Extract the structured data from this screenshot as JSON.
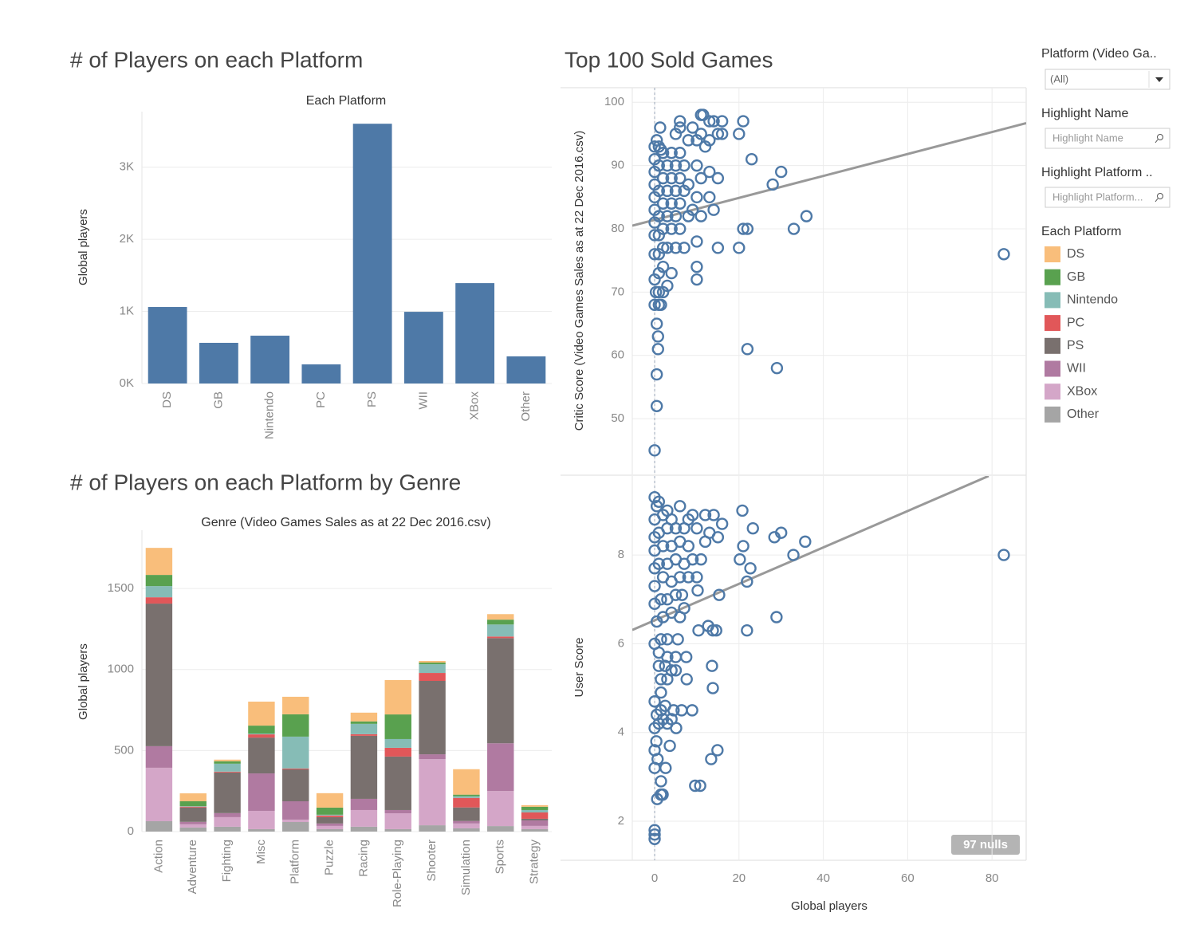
{
  "chart_data": [
    {
      "type": "bar",
      "title": "# of Players on each Platform",
      "header": "Each Platform",
      "y_label": "Global players",
      "categories": [
        "DS",
        "GB",
        "Nintendo",
        "PC",
        "PS",
        "WII",
        "XBox",
        "Other"
      ],
      "values": [
        1061,
        564,
        663,
        265,
        3602,
        994,
        1392,
        376
      ],
      "color": "#4e79a7",
      "ylim": [
        0,
        3770
      ],
      "yticks": [
        {
          "value": 0,
          "label": "0K"
        },
        {
          "value": 1000,
          "label": "1K"
        },
        {
          "value": 2000,
          "label": "2K"
        },
        {
          "value": 3000,
          "label": "3K"
        }
      ],
      "grid": true
    },
    {
      "type": "stacked_bar",
      "title": "# of Players on each Platform by Genre",
      "header": "Genre (Video Games Sales as at 22 Dec 2016.csv)",
      "y_label": "Global players",
      "legend_title": "Each Platform",
      "categories": [
        "Action",
        "Adventure",
        "Fighting",
        "Misc",
        "Platform",
        "Puzzle",
        "Racing",
        "Role-Playing",
        "Shooter",
        "Simulation",
        "Sports",
        "Strategy"
      ],
      "series": [
        {
          "name": "DS",
          "color": "#f9be7b",
          "values": [
            167,
            49,
            10,
            148,
            108,
            89,
            54,
            212,
            10,
            157,
            34,
            10
          ]
        },
        {
          "name": "GB",
          "color": "#59a14f",
          "values": [
            69,
            30,
            15,
            49,
            138,
            44,
            15,
            152,
            10,
            10,
            30,
            20
          ]
        },
        {
          "name": "Nintendo",
          "color": "#86bcb6",
          "values": [
            69,
            3,
            49,
            5,
            197,
            5,
            64,
            54,
            54,
            10,
            74,
            15
          ]
        },
        {
          "name": "PC",
          "color": "#e15759",
          "values": [
            39,
            5,
            5,
            20,
            5,
            10,
            10,
            54,
            49,
            59,
            10,
            39
          ]
        },
        {
          "name": "PS",
          "color": "#79706e",
          "values": [
            880,
            89,
            251,
            221,
            197,
            39,
            389,
            330,
            453,
            84,
            649,
            10
          ]
        },
        {
          "name": "WII",
          "color": "#b07aa1",
          "values": [
            133,
            15,
            25,
            231,
            113,
            15,
            69,
            20,
            30,
            15,
            295,
            34
          ]
        },
        {
          "name": "XBox",
          "color": "#d4a6c8",
          "values": [
            330,
            20,
            59,
            113,
            15,
            20,
            103,
            98,
            408,
            30,
            216,
            20
          ]
        },
        {
          "name": "Other",
          "color": "#a5a5a5",
          "values": [
            64,
            25,
            30,
            15,
            59,
            15,
            30,
            15,
            39,
            20,
            34,
            15
          ]
        }
      ],
      "ylim": [
        0,
        1860
      ],
      "yticks": [
        0,
        500,
        1000,
        1500
      ],
      "grid": true
    },
    {
      "type": "scatter",
      "title": "Top 100 Sold Games",
      "y_label": "Critic Score (Video Games Sales as at 22 Dec 2016.csv)",
      "color": "#4e79a7",
      "x": [
        0,
        0.5,
        0.5,
        0.8,
        0.8,
        0.5,
        0,
        1,
        1.5,
        0.3,
        1,
        2,
        3,
        0,
        1,
        2,
        4,
        0,
        1,
        2,
        3,
        5,
        7,
        0,
        1,
        2,
        4,
        6,
        0,
        1,
        3,
        5,
        8,
        0,
        2,
        4,
        6,
        9,
        14,
        0,
        1,
        3,
        5,
        7,
        10,
        13,
        0,
        2,
        4,
        6,
        8,
        11,
        15,
        0,
        1,
        3,
        5,
        7,
        10,
        13,
        0,
        2,
        4,
        6,
        0,
        1,
        1.5,
        8,
        10,
        12,
        13,
        15,
        16,
        20,
        0.5,
        1.3,
        5,
        6,
        9,
        11,
        11.5,
        13,
        14,
        16,
        21,
        6,
        11,
        10,
        10,
        10,
        11,
        15,
        20,
        21,
        22,
        23,
        28,
        30,
        33,
        36,
        22,
        29,
        82.8
      ],
      "values": [
        45,
        52,
        57,
        61,
        63,
        65,
        68,
        68,
        68,
        70,
        70,
        70,
        71,
        72,
        73,
        74,
        73,
        76,
        76,
        77,
        77,
        77,
        77,
        79,
        79,
        80,
        80,
        80,
        81,
        82,
        82,
        82,
        82,
        83,
        84,
        84,
        84,
        83,
        83,
        85,
        86,
        86,
        86,
        86,
        85,
        85,
        87,
        88,
        88,
        88,
        87,
        88,
        88,
        89,
        90,
        90,
        90,
        90,
        90,
        89,
        91,
        92,
        92,
        92,
        93,
        93,
        92.5,
        94,
        94,
        93,
        94,
        95,
        95,
        95,
        94,
        96,
        95,
        97,
        96,
        98,
        98,
        97,
        97,
        97,
        97,
        96,
        95,
        72,
        74,
        78,
        82,
        77,
        77,
        80,
        80,
        91,
        87,
        89,
        80,
        82,
        61,
        58,
        76
      ],
      "trendline": {
        "x": [
          -5.3,
          88.1
        ],
        "y": [
          80.5,
          96.7
        ],
        "color": "#999999"
      },
      "xlim": [
        -5.3,
        88.1
      ],
      "ylim": [
        41.2,
        102.3
      ],
      "yticks": [
        50,
        60,
        70,
        80,
        90,
        100
      ],
      "grid": true
    },
    {
      "type": "scatter",
      "y_label": "User Score",
      "x_label": "Global players",
      "annotation": "97 nulls",
      "color": "#4e79a7",
      "x": [
        0,
        0,
        0,
        0.6,
        1.5,
        1.9,
        1.5,
        2.6,
        0,
        0.7,
        0,
        0.4,
        3.6,
        5.1,
        0,
        1,
        2,
        3,
        4,
        0.5,
        1.5,
        2.5,
        4.5,
        6.4,
        8.9,
        0,
        1.5,
        7.6,
        1.5,
        3,
        5,
        1,
        2.5,
        4,
        13.6,
        13.8,
        1,
        3,
        5,
        7.5,
        0,
        1.5,
        3,
        5.5,
        0.5,
        2,
        4,
        6,
        7,
        10.4,
        12.7,
        13.8,
        14.6,
        0,
        1.5,
        3,
        5,
        6.5,
        10.2,
        15.3,
        0,
        2,
        4,
        6,
        8,
        10,
        0,
        1,
        3,
        5,
        7,
        9,
        11,
        0,
        2,
        4,
        6,
        8,
        12,
        15,
        0,
        1,
        3,
        5,
        7,
        10,
        13,
        0,
        2,
        4,
        8,
        12,
        0.5,
        3,
        6,
        9,
        14,
        16,
        0,
        1,
        20.8,
        23.3,
        21,
        20.2,
        22.7,
        21.9,
        28.4,
        30,
        32.9,
        35.7,
        14.9,
        13.4,
        9.6,
        10.8,
        28.9,
        21.9,
        82.8
      ],
      "values": [
        1.6,
        1.7,
        1.8,
        2.5,
        2.6,
        2.6,
        2.9,
        3.2,
        3.2,
        3.4,
        3.6,
        3.8,
        3.7,
        4.1,
        4.1,
        4.2,
        4.3,
        4.2,
        4.3,
        4.4,
        4.5,
        4.6,
        4.5,
        4.5,
        4.5,
        4.7,
        4.9,
        5.2,
        5.2,
        5.2,
        5.4,
        5.5,
        5.5,
        5.4,
        5.5,
        5.0,
        5.8,
        5.7,
        5.7,
        5.7,
        6.0,
        6.1,
        6.1,
        6.1,
        6.5,
        6.6,
        6.7,
        6.6,
        6.8,
        6.3,
        6.4,
        6.3,
        6.3,
        6.9,
        7.0,
        7.0,
        7.1,
        7.1,
        7.2,
        7.1,
        7.3,
        7.5,
        7.4,
        7.5,
        7.5,
        7.5,
        7.7,
        7.8,
        7.8,
        7.9,
        7.8,
        7.9,
        7.9,
        8.1,
        8.2,
        8.2,
        8.3,
        8.2,
        8.3,
        8.4,
        8.4,
        8.5,
        8.6,
        8.6,
        8.6,
        8.6,
        8.5,
        8.8,
        8.9,
        8.8,
        8.8,
        8.9,
        9.1,
        9.0,
        9.1,
        8.9,
        8.9,
        8.7,
        9.3,
        9.2,
        9.0,
        8.6,
        8.2,
        7.9,
        7.7,
        7.4,
        8.4,
        8.5,
        8.0,
        8.3,
        3.6,
        3.4,
        2.8,
        2.8,
        6.6,
        6.3,
        8.0
      ],
      "trendline": {
        "x": [
          -5.3,
          79.2
        ],
        "y": [
          6.31,
          9.78
        ],
        "color": "#999999"
      },
      "xlim": [
        -5.3,
        88.1
      ],
      "ylim": [
        1.12,
        9.78
      ],
      "xticks": [
        0,
        20,
        40,
        60,
        80
      ],
      "yticks": [
        2,
        4,
        6,
        8
      ],
      "grid": true
    }
  ],
  "filters": [
    {
      "label": "Platform (Video Ga..",
      "value": "(All)"
    },
    {
      "label": "Highlight Name",
      "placeholder": "Highlight Name"
    },
    {
      "label": "Highlight Platform ..",
      "placeholder": "Highlight Platform..."
    }
  ]
}
